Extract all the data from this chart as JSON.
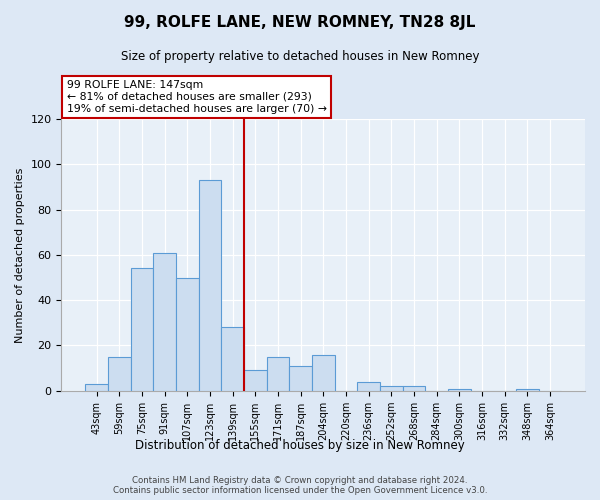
{
  "title": "99, ROLFE LANE, NEW ROMNEY, TN28 8JL",
  "subtitle": "Size of property relative to detached houses in New Romney",
  "xlabel": "Distribution of detached houses by size in New Romney",
  "ylabel": "Number of detached properties",
  "bar_labels": [
    "43sqm",
    "59sqm",
    "75sqm",
    "91sqm",
    "107sqm",
    "123sqm",
    "139sqm",
    "155sqm",
    "171sqm",
    "187sqm",
    "204sqm",
    "220sqm",
    "236sqm",
    "252sqm",
    "268sqm",
    "284sqm",
    "300sqm",
    "316sqm",
    "332sqm",
    "348sqm",
    "364sqm"
  ],
  "bar_values": [
    3,
    15,
    54,
    61,
    50,
    93,
    28,
    9,
    15,
    11,
    16,
    0,
    4,
    2,
    2,
    0,
    1,
    0,
    0,
    1,
    0
  ],
  "bar_color": "#ccddf0",
  "bar_edge_color": "#5b9bd5",
  "vline_color": "#c00000",
  "ylim": [
    0,
    120
  ],
  "yticks": [
    0,
    20,
    40,
    60,
    80,
    100,
    120
  ],
  "annotation_title": "99 ROLFE LANE: 147sqm",
  "annotation_line1": "← 81% of detached houses are smaller (293)",
  "annotation_line2": "19% of semi-detached houses are larger (70) →",
  "annotation_box_color": "#ffffff",
  "annotation_box_edge": "#c00000",
  "footer_line1": "Contains HM Land Registry data © Crown copyright and database right 2024.",
  "footer_line2": "Contains public sector information licensed under the Open Government Licence v3.0.",
  "bg_color": "#dde8f5",
  "plot_bg_color": "#e8f0f8",
  "grid_color": "#ffffff"
}
